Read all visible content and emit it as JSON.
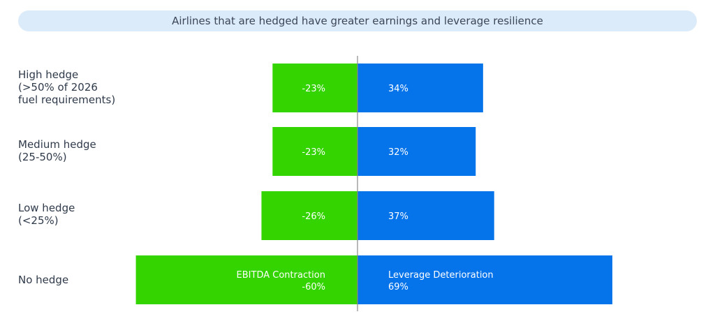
{
  "banner": {
    "title": "Airlines that are hedged have greater earnings and leverage resilience"
  },
  "colors": {
    "ebitda": "#33d400",
    "leverage": "#0573ea",
    "axis": "#8a8a8a",
    "banner_bg": "#dcebfa"
  },
  "chart_data": {
    "type": "bar",
    "orientation": "horizontal-diverging",
    "categories": [
      "High hedge\n(>50% of 2026\nfuel requirements)",
      "Medium hedge\n(25-50%)",
      "Low hedge\n(<25%)",
      "No hedge"
    ],
    "series": [
      {
        "name": "EBITDA Contraction",
        "values": [
          -23,
          -23,
          -26,
          -60
        ],
        "value_labels": [
          "-23%",
          "-23%",
          "-26%",
          "-60%"
        ],
        "color": "#33d400"
      },
      {
        "name": "Leverage Deterioration",
        "values": [
          34,
          32,
          37,
          69
        ],
        "value_labels": [
          "34%",
          "32%",
          "37%",
          "69%"
        ],
        "color": "#0573ea"
      }
    ],
    "xlim": [
      -60,
      69
    ],
    "legend": "inline-on-last-bar",
    "grid": false
  }
}
